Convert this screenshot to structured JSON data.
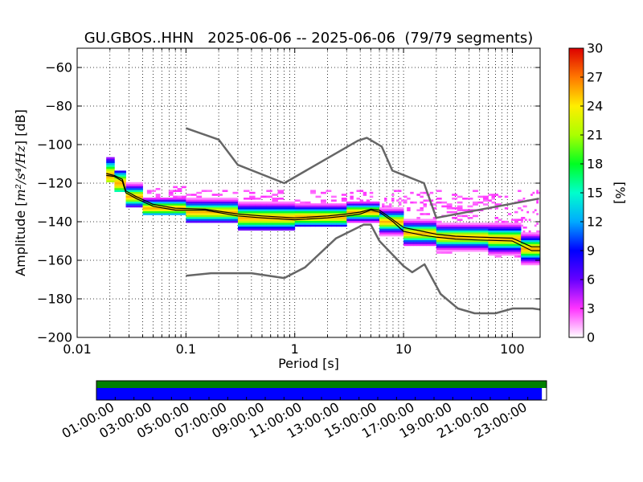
{
  "chart_data": [
    {
      "type": "heatmap",
      "title": "GU.GBOS..HHN   2025-06-06 -- 2025-06-06  (79/79 segments)",
      "xlabel": "Period [s]",
      "ylabel_parts": {
        "prefix": "Amplitude [",
        "unit": "m²/s⁴/Hz",
        "suffix": "] [dB]"
      },
      "xscale": "log",
      "xlim": [
        0.01,
        180
      ],
      "ylim": [
        -200,
        -50
      ],
      "x_ticks": [
        0.01,
        0.1,
        1,
        10,
        100
      ],
      "x_tick_labels": [
        "0.01",
        "0.1",
        "1",
        "10",
        "100"
      ],
      "y_ticks": [
        -200,
        -180,
        -160,
        -140,
        -120,
        -100,
        -80,
        -60
      ],
      "y_tick_labels": [
        "−200",
        "−180",
        "−160",
        "−140",
        "−120",
        "−100",
        "−80",
        "−60"
      ],
      "grid": true,
      "colorbar": {
        "label": "[%]",
        "range": [
          0,
          30
        ],
        "ticks": [
          "0",
          "3",
          "6",
          "9",
          "12",
          "15",
          "18",
          "21",
          "24",
          "27",
          "30"
        ]
      },
      "series": [
        {
          "name": "",
          "role": "noise model high",
          "color": "#666666",
          "x": [
            0.1,
            0.2,
            0.3,
            0.8,
            3.8,
            4.6,
            6.3,
            7.9,
            15.4,
            20.0,
            176.0
          ],
          "y": [
            -91.5,
            -97.4,
            -110.5,
            -120.0,
            -98.0,
            -96.5,
            -101.0,
            -113.5,
            -120.0,
            -138.0,
            -128.0
          ]
        },
        {
          "name": "",
          "role": "noise model low",
          "color": "#666666",
          "x": [
            0.1,
            0.17,
            0.4,
            0.8,
            1.24,
            2.4,
            4.3,
            5.0,
            6.0,
            10.0,
            12.0,
            15.6,
            21.9,
            31.6,
            45.0,
            70.0,
            101.0,
            154.0,
            180.0
          ],
          "y": [
            -168.0,
            -166.7,
            -166.7,
            -169.2,
            -163.7,
            -148.6,
            -141.5,
            -141.5,
            -150.0,
            -163.0,
            -166.2,
            -162.1,
            -177.5,
            -185.0,
            -187.5,
            -187.5,
            -185.0,
            -185.0,
            -185.5
          ]
        },
        {
          "name": "",
          "role": "mode",
          "color": "#000000",
          "x": [
            0.0185,
            0.022,
            0.026,
            0.028,
            0.035,
            0.05,
            0.08,
            0.15,
            0.3,
            0.5,
            1.0,
            2.0,
            3.0,
            4.0,
            5.0,
            6.0,
            8.0,
            10.0,
            15.0,
            20.0,
            30.0,
            50.0,
            100.0,
            150.0,
            180.0
          ],
          "y": [
            -116,
            -116.5,
            -119,
            -125,
            -128,
            -132,
            -134,
            -134,
            -137,
            -138,
            -139,
            -138,
            -137,
            -136,
            -134,
            -135,
            -140,
            -145,
            -147,
            -148,
            -149,
            -149.5,
            -150,
            -155,
            -155
          ]
        },
        {
          "name": "",
          "role": "mean",
          "color": "#000000",
          "x": [
            0.0185,
            0.022,
            0.026,
            0.028,
            0.035,
            0.05,
            0.08,
            0.15,
            0.3,
            0.5,
            1.0,
            2.0,
            3.0,
            4.0,
            5.0,
            6.0,
            8.0,
            10.0,
            15.0,
            20.0,
            30.0,
            50.0,
            100.0,
            150.0,
            180.0
          ],
          "y": [
            -115,
            -116,
            -118,
            -124,
            -127,
            -131,
            -133,
            -133.5,
            -136,
            -137,
            -138,
            -137,
            -136,
            -135,
            -133.5,
            -134,
            -139,
            -143,
            -145,
            -146.5,
            -147.5,
            -148,
            -148.5,
            -153,
            -153
          ]
        }
      ],
      "density": [
        {
          "x0": 0.0185,
          "x1": 0.022,
          "mean": -116,
          "spread": 5,
          "top": -107,
          "bottom": -119
        },
        {
          "x0": 0.022,
          "x1": 0.028,
          "mean": -120,
          "spread": 4,
          "top": -114,
          "bottom": -124
        },
        {
          "x0": 0.028,
          "x1": 0.04,
          "mean": -127,
          "spread": 3,
          "top": -120,
          "bottom": -132
        },
        {
          "x0": 0.04,
          "x1": 0.1,
          "mean": -133,
          "spread": 2.5,
          "top": -121,
          "bottom": -136
        },
        {
          "x0": 0.1,
          "x1": 0.3,
          "mean": -135,
          "spread": 3,
          "top": -124,
          "bottom": -140
        },
        {
          "x0": 0.3,
          "x1": 1.0,
          "mean": -138,
          "spread": 3.5,
          "top": -124,
          "bottom": -144
        },
        {
          "x0": 1.0,
          "x1": 3.0,
          "mean": -137.5,
          "spread": 3,
          "top": -124,
          "bottom": -142
        },
        {
          "x0": 3.0,
          "x1": 6.0,
          "mean": -135,
          "spread": 2.5,
          "top": -124,
          "bottom": -140
        },
        {
          "x0": 6.0,
          "x1": 10.0,
          "mean": -140,
          "spread": 3,
          "top": -124,
          "bottom": -147
        },
        {
          "x0": 10.0,
          "x1": 20.0,
          "mean": -146,
          "spread": 3,
          "top": -124,
          "bottom": -152
        },
        {
          "x0": 20.0,
          "x1": 60.0,
          "mean": -148,
          "spread": 3,
          "top": -124,
          "bottom": -156
        },
        {
          "x0": 60.0,
          "x1": 120.0,
          "mean": -149,
          "spread": 3.5,
          "top": -124,
          "bottom": -158
        },
        {
          "x0": 120.0,
          "x1": 180.0,
          "mean": -154,
          "spread": 3.5,
          "top": -124,
          "bottom": -162
        }
      ]
    },
    {
      "type": "timeline",
      "time_ticks": [
        "01:00:00",
        "03:00:00",
        "05:00:00",
        "07:00:00",
        "09:00:00",
        "11:00:00",
        "13:00:00",
        "15:00:00",
        "17:00:00",
        "19:00:00",
        "21:00:00",
        "23:00:00"
      ],
      "time_range_hours": [
        0,
        24
      ],
      "coverage_color": "#008000",
      "segments_color": "#0000ff",
      "segments_end_hour": 23.75
    }
  ]
}
